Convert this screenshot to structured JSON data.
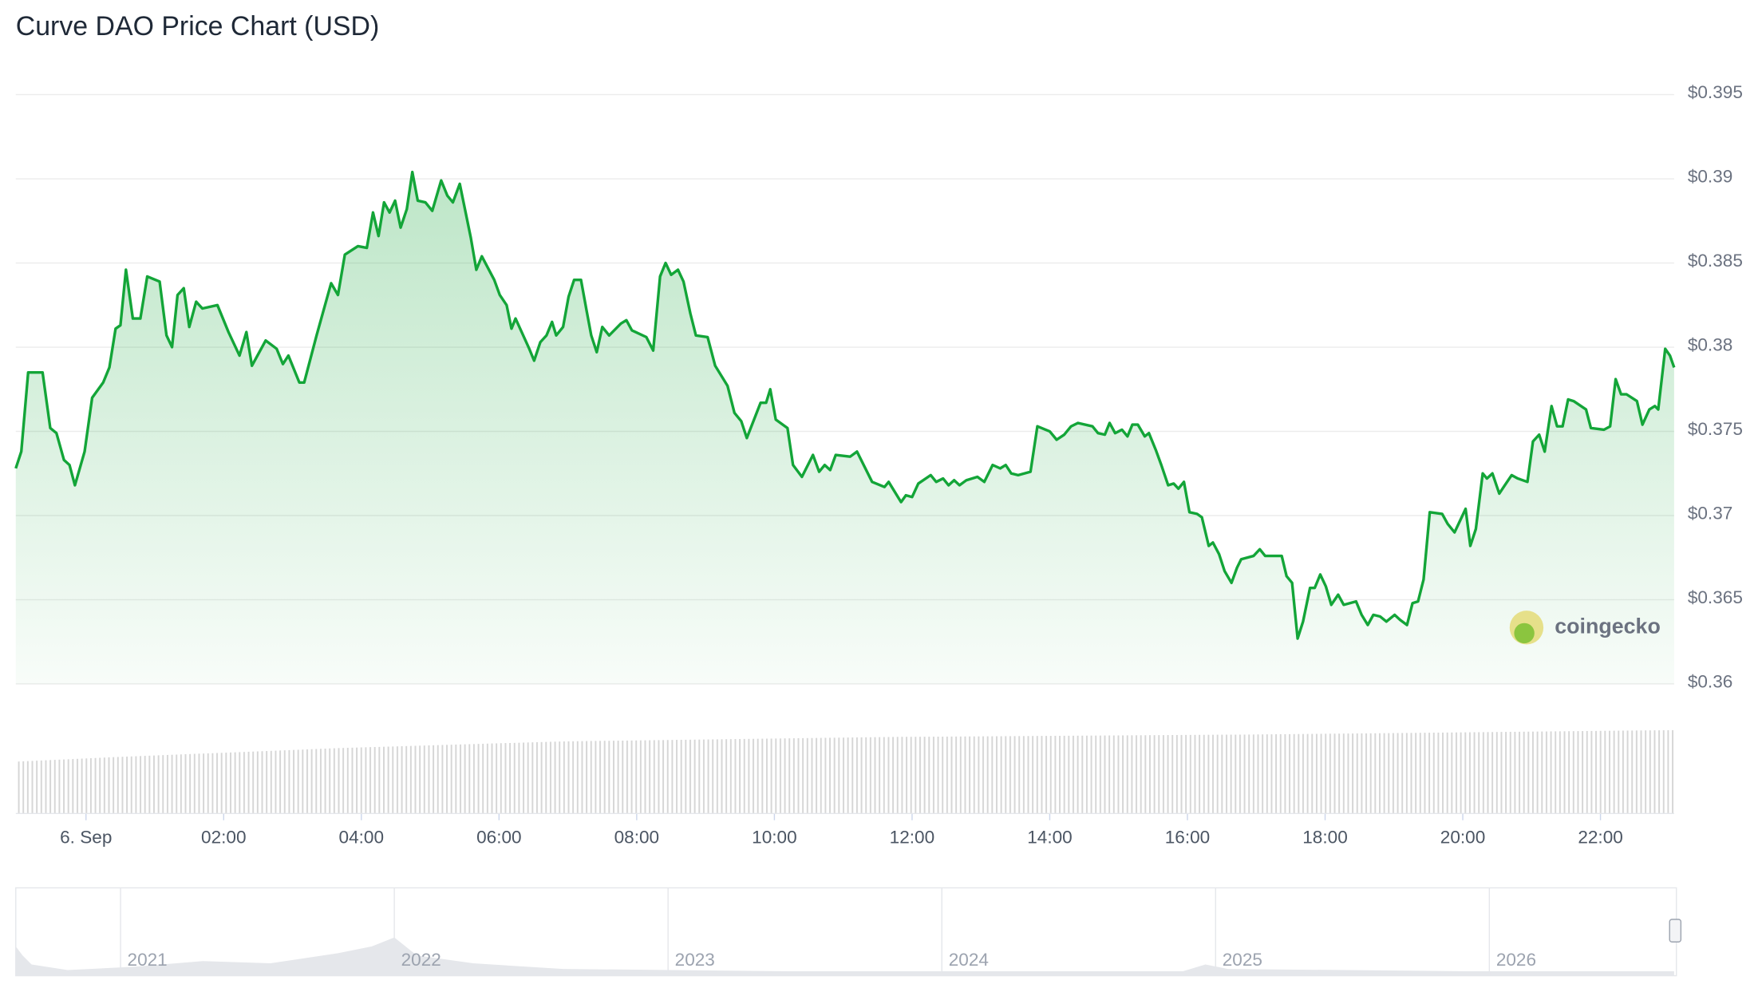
{
  "chart_data": {
    "type": "line",
    "title": "Curve DAO Price Chart (USD)",
    "color": "#13a538",
    "grid": true,
    "x": [
      -1.02,
      -0.94,
      -0.84,
      -0.63,
      -0.52,
      -0.43,
      -0.32,
      -0.24,
      -0.16,
      -0.02,
      0.09,
      0.25,
      0.34,
      0.43,
      0.5,
      0.58,
      0.68,
      0.79,
      0.89,
      1.07,
      1.17,
      1.25,
      1.33,
      1.42,
      1.5,
      1.6,
      1.69,
      1.91,
      2.07,
      2.23,
      2.33,
      2.41,
      2.61,
      2.77,
      2.86,
      2.94,
      3.1,
      3.17,
      3.35,
      3.56,
      3.66,
      3.76,
      3.95,
      4.08,
      4.17,
      4.25,
      4.33,
      4.41,
      4.49,
      4.57,
      4.66,
      4.74,
      4.82,
      4.93,
      5.03,
      5.16,
      5.25,
      5.33,
      5.43,
      5.59,
      5.67,
      5.75,
      5.93,
      6.01,
      6.11,
      6.18,
      6.24,
      6.44,
      6.51,
      6.6,
      6.69,
      6.77,
      6.83,
      6.93,
      7.01,
      7.09,
      7.19,
      7.27,
      7.34,
      7.42,
      7.5,
      7.6,
      7.77,
      7.85,
      7.93,
      8.14,
      8.24,
      8.34,
      8.42,
      8.5,
      8.6,
      8.68,
      8.78,
      8.86,
      9.03,
      9.14,
      9.32,
      9.42,
      9.52,
      9.6,
      9.8,
      9.88,
      9.94,
      10.02,
      10.19,
      10.27,
      10.4,
      10.56,
      10.65,
      10.73,
      10.81,
      10.89,
      11.1,
      11.2,
      11.42,
      11.6,
      11.66,
      11.84,
      11.91,
      12.0,
      12.09,
      12.27,
      12.35,
      12.45,
      12.53,
      12.61,
      12.69,
      12.79,
      12.95,
      13.05,
      13.17,
      13.28,
      13.36,
      13.44,
      13.54,
      13.72,
      13.82,
      14.0,
      14.1,
      14.21,
      14.31,
      14.41,
      14.62,
      14.7,
      14.8,
      14.87,
      14.95,
      15.05,
      15.13,
      15.2,
      15.28,
      15.38,
      15.44,
      15.54,
      15.62,
      15.72,
      15.8,
      15.87,
      15.95,
      16.03,
      16.14,
      16.21,
      16.31,
      16.37,
      16.46,
      16.54,
      16.64,
      16.72,
      16.78,
      16.96,
      17.05,
      17.13,
      17.29,
      17.37,
      17.44,
      17.52,
      17.6,
      17.68,
      17.78,
      17.85,
      17.93,
      18.01,
      18.09,
      18.19,
      18.27,
      18.45,
      18.53,
      18.62,
      18.7,
      18.8,
      18.89,
      19.01,
      19.09,
      19.19,
      19.27,
      19.35,
      19.43,
      19.52,
      19.7,
      19.78,
      19.88,
      19.96,
      20.04,
      20.11,
      20.19,
      20.29,
      20.35,
      20.43,
      20.53,
      20.61,
      20.71,
      20.8,
      20.94,
      21.02,
      21.11,
      21.19,
      21.29,
      21.37,
      21.45,
      21.53,
      21.61,
      21.79,
      21.86,
      22.05,
      22.14,
      22.22,
      22.3,
      22.38,
      22.53,
      22.61,
      22.71,
      22.79,
      22.84,
      22.94,
      23.01,
      23.07
    ],
    "values": [
      0.3728,
      0.3738,
      0.3785,
      0.3785,
      0.3752,
      0.3749,
      0.3733,
      0.373,
      0.3718,
      0.3738,
      0.377,
      0.3779,
      0.3788,
      0.3811,
      0.3813,
      0.3846,
      0.3817,
      0.3817,
      0.3842,
      0.3839,
      0.3807,
      0.38,
      0.3831,
      0.3835,
      0.3812,
      0.3827,
      0.3823,
      0.3825,
      0.3809,
      0.3795,
      0.3809,
      0.3789,
      0.3804,
      0.3799,
      0.379,
      0.3795,
      0.3779,
      0.3779,
      0.3807,
      0.3838,
      0.3831,
      0.3855,
      0.386,
      0.3859,
      0.388,
      0.3866,
      0.3886,
      0.388,
      0.3887,
      0.3871,
      0.3882,
      0.3904,
      0.3887,
      0.3886,
      0.3881,
      0.3899,
      0.389,
      0.3886,
      0.3897,
      0.3865,
      0.3846,
      0.3854,
      0.384,
      0.3831,
      0.3825,
      0.3811,
      0.3817,
      0.3799,
      0.3792,
      0.3803,
      0.3807,
      0.3815,
      0.3807,
      0.3812,
      0.383,
      0.384,
      0.384,
      0.3822,
      0.3807,
      0.3797,
      0.3812,
      0.3807,
      0.3814,
      0.3816,
      0.381,
      0.3806,
      0.3798,
      0.3842,
      0.385,
      0.3843,
      0.3846,
      0.3839,
      0.382,
      0.3807,
      0.3806,
      0.3789,
      0.3777,
      0.3761,
      0.3756,
      0.3746,
      0.3767,
      0.3767,
      0.3775,
      0.3757,
      0.3752,
      0.373,
      0.3723,
      0.3736,
      0.3726,
      0.373,
      0.3727,
      0.3736,
      0.3735,
      0.3738,
      0.372,
      0.3717,
      0.372,
      0.3708,
      0.3712,
      0.3711,
      0.3719,
      0.3724,
      0.372,
      0.3722,
      0.3718,
      0.3721,
      0.3718,
      0.3721,
      0.3723,
      0.372,
      0.373,
      0.3728,
      0.373,
      0.3725,
      0.3724,
      0.3726,
      0.3753,
      0.375,
      0.3745,
      0.3748,
      0.3753,
      0.3755,
      0.3753,
      0.3749,
      0.3748,
      0.3755,
      0.3749,
      0.3751,
      0.3747,
      0.3754,
      0.3754,
      0.3747,
      0.3749,
      0.3739,
      0.373,
      0.3718,
      0.3719,
      0.3716,
      0.372,
      0.3702,
      0.3701,
      0.3699,
      0.3682,
      0.3684,
      0.3677,
      0.3667,
      0.366,
      0.3669,
      0.3674,
      0.3676,
      0.368,
      0.3676,
      0.3676,
      0.3676,
      0.3664,
      0.366,
      0.3627,
      0.3637,
      0.3657,
      0.3657,
      0.3665,
      0.3658,
      0.3647,
      0.3653,
      0.3647,
      0.3649,
      0.3641,
      0.3635,
      0.3641,
      0.364,
      0.3637,
      0.3641,
      0.3638,
      0.3635,
      0.3648,
      0.3649,
      0.3662,
      0.3702,
      0.3701,
      0.3695,
      0.369,
      0.3697,
      0.3704,
      0.3682,
      0.3692,
      0.3725,
      0.3722,
      0.3725,
      0.3713,
      0.3718,
      0.3724,
      0.3722,
      0.372,
      0.3744,
      0.3748,
      0.3738,
      0.3765,
      0.3753,
      0.3753,
      0.3769,
      0.3768,
      0.3763,
      0.3752,
      0.3751,
      0.3753,
      0.3781,
      0.3772,
      0.3772,
      0.3768,
      0.3754,
      0.3763,
      0.3765,
      0.3763,
      0.3799,
      0.3795,
      0.3788
    ],
    "xlim": [
      -1.02,
      23.07
    ],
    "xticks": [
      {
        "value": 0,
        "label": "6. Sep"
      },
      {
        "value": 2,
        "label": "02:00"
      },
      {
        "value": 4,
        "label": "04:00"
      },
      {
        "value": 6,
        "label": "06:00"
      },
      {
        "value": 8,
        "label": "08:00"
      },
      {
        "value": 10,
        "label": "10:00"
      },
      {
        "value": 12,
        "label": "12:00"
      },
      {
        "value": 14,
        "label": "14:00"
      },
      {
        "value": 16,
        "label": "16:00"
      },
      {
        "value": 18,
        "label": "18:00"
      },
      {
        "value": 20,
        "label": "20:00"
      },
      {
        "value": 22,
        "label": "22:00"
      }
    ],
    "ylim": [
      0.36,
      0.395
    ],
    "yticks": [
      {
        "value": 0.36,
        "label": "$0.36"
      },
      {
        "value": 0.365,
        "label": "$0.365"
      },
      {
        "value": 0.37,
        "label": "$0.37"
      },
      {
        "value": 0.375,
        "label": "$0.375"
      },
      {
        "value": 0.38,
        "label": "$0.38"
      },
      {
        "value": 0.385,
        "label": "$0.385"
      },
      {
        "value": 0.39,
        "label": "$0.39"
      },
      {
        "value": 0.395,
        "label": "$0.395"
      }
    ],
    "watermark": "coingecko",
    "navigator": {
      "labels": [
        "2021",
        "2022",
        "2023",
        "2024",
        "2025",
        "2026"
      ]
    }
  }
}
